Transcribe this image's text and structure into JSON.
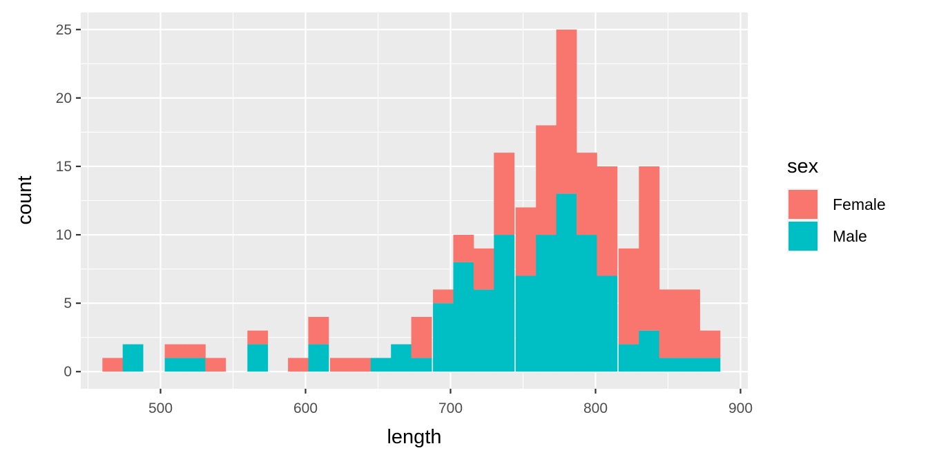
{
  "chart_data": {
    "type": "bar",
    "subtype": "stacked-histogram",
    "title": "",
    "xlabel": "length",
    "ylabel": "count",
    "xlim": [
      445,
      905
    ],
    "ylim": [
      -1.25,
      26.25
    ],
    "xticks": [
      500,
      600,
      700,
      800,
      900
    ],
    "yticks": [
      0,
      5,
      10,
      15,
      20,
      25
    ],
    "bin_width": 14.2,
    "bins": [
      467,
      481,
      496,
      510,
      524,
      538,
      553,
      567,
      581,
      595,
      609,
      624,
      638,
      652,
      666,
      680,
      695,
      709,
      723,
      737,
      752,
      766,
      780,
      794,
      808,
      823,
      837,
      851,
      865,
      879
    ],
    "series": [
      {
        "name": "Female",
        "color": "#F8766D",
        "values": [
          1,
          0,
          0,
          1,
          1,
          1,
          0,
          1,
          0,
          1,
          2,
          1,
          1,
          0,
          0,
          3,
          1,
          2,
          3,
          6,
          5,
          8,
          12,
          6,
          8,
          7,
          12,
          5,
          5,
          2
        ]
      },
      {
        "name": "Male",
        "color": "#00BFC4",
        "values": [
          0,
          2,
          0,
          1,
          1,
          0,
          0,
          2,
          0,
          0,
          2,
          0,
          0,
          1,
          2,
          1,
          5,
          8,
          6,
          10,
          7,
          10,
          13,
          10,
          7,
          2,
          3,
          1,
          1,
          1
        ]
      }
    ],
    "grid": true,
    "legend": {
      "title": "sex",
      "position": "right",
      "entries": [
        "Female",
        "Male"
      ]
    }
  }
}
